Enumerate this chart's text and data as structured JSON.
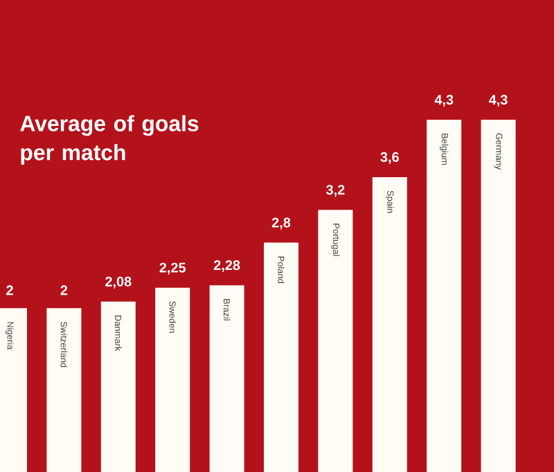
{
  "chart_data": {
    "type": "bar",
    "title": "Average of **goals per match**",
    "categories": [
      "Nigeria",
      "Switzerland",
      "Danmark",
      "Sweden",
      "Brazil",
      "Poland",
      "Portugal",
      "Spain",
      "Belgium",
      "Germany"
    ],
    "values": [
      2,
      2,
      2.08,
      2.25,
      2.28,
      2.8,
      3.2,
      3.6,
      4.3,
      4.3
    ],
    "value_labels": [
      "2",
      "2",
      "2,08",
      "2,25",
      "2,28",
      "2,8",
      "3,2",
      "3,6",
      "4,3",
      "4,3"
    ],
    "color": "#fffdf5"
  }
}
